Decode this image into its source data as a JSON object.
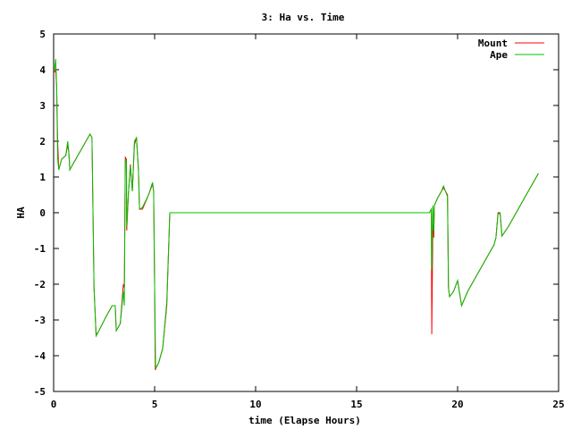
{
  "chart_data": {
    "type": "line",
    "title": "3: Ha vs. Time",
    "xlabel": "time (Elapse Hours)",
    "ylabel": "HA",
    "xlim": [
      0,
      25
    ],
    "ylim": [
      -5,
      5
    ],
    "x_ticks": [
      "0",
      "5",
      "10",
      "15",
      "20",
      "25"
    ],
    "y_ticks": [
      "-5",
      "-4",
      "-3",
      "-2",
      "-1",
      "0",
      "1",
      "2",
      "3",
      "4",
      "5"
    ],
    "grid": false,
    "legend_position": "top-right",
    "series": [
      {
        "name": "Mount",
        "color": "#ff0000",
        "points": [
          [
            0.0,
            3.9
          ],
          [
            0.1,
            4.0
          ],
          [
            0.15,
            3.5
          ],
          [
            0.2,
            2.0
          ],
          [
            0.25,
            1.2
          ],
          [
            0.3,
            1.3
          ],
          [
            0.4,
            1.5
          ],
          [
            0.6,
            1.6
          ],
          [
            0.7,
            1.9
          ],
          [
            0.75,
            1.7
          ],
          [
            0.8,
            1.2
          ],
          [
            0.9,
            1.3
          ],
          [
            1.2,
            1.6
          ],
          [
            1.5,
            1.9
          ],
          [
            1.8,
            2.2
          ],
          [
            1.9,
            2.1
          ],
          [
            2.0,
            -2.1
          ],
          [
            2.1,
            -3.4
          ],
          [
            2.2,
            -3.35
          ],
          [
            2.6,
            -2.9
          ],
          [
            2.9,
            -2.6
          ],
          [
            3.05,
            -2.6
          ],
          [
            3.1,
            -3.3
          ],
          [
            3.3,
            -3.1
          ],
          [
            3.45,
            -2.0
          ],
          [
            3.5,
            -2.1
          ],
          [
            3.55,
            1.55
          ],
          [
            3.6,
            1.5
          ],
          [
            3.62,
            -0.5
          ],
          [
            3.7,
            0.5
          ],
          [
            3.8,
            1.35
          ],
          [
            3.9,
            0.6
          ],
          [
            4.0,
            1.9
          ],
          [
            4.1,
            2.1
          ],
          [
            4.2,
            1.2
          ],
          [
            4.25,
            0.1
          ],
          [
            4.4,
            0.1
          ],
          [
            4.7,
            0.5
          ],
          [
            4.9,
            0.8
          ],
          [
            4.95,
            0.6
          ],
          [
            5.0,
            -2.0
          ],
          [
            5.03,
            -4.4
          ],
          [
            5.1,
            -4.3
          ],
          [
            5.2,
            -4.2
          ],
          [
            5.4,
            -3.8
          ],
          [
            5.6,
            -2.6
          ],
          [
            5.75,
            0.0
          ],
          [
            18.6,
            0.0
          ],
          [
            18.7,
            0.1
          ],
          [
            18.72,
            -3.4
          ],
          [
            18.78,
            0.0
          ],
          [
            18.82,
            -0.7
          ],
          [
            18.85,
            0.2
          ],
          [
            19.0,
            0.4
          ],
          [
            19.2,
            0.6
          ],
          [
            19.3,
            0.7
          ],
          [
            19.5,
            0.5
          ],
          [
            19.55,
            -2.1
          ],
          [
            19.6,
            -2.35
          ],
          [
            19.8,
            -2.2
          ],
          [
            20.0,
            -1.9
          ],
          [
            20.2,
            -2.6
          ],
          [
            20.5,
            -2.2
          ],
          [
            21.0,
            -1.7
          ],
          [
            21.5,
            -1.2
          ],
          [
            21.8,
            -0.9
          ],
          [
            21.9,
            -0.7
          ],
          [
            22.0,
            0.0
          ],
          [
            22.1,
            0.0
          ],
          [
            22.2,
            -0.65
          ],
          [
            22.5,
            -0.4
          ],
          [
            22.8,
            -0.1
          ],
          [
            23.0,
            0.1
          ],
          [
            23.4,
            0.5
          ],
          [
            23.8,
            0.9
          ],
          [
            24.0,
            1.1
          ]
        ]
      },
      {
        "name": "Ape",
        "color": "#00c000",
        "points": [
          [
            0.0,
            4.0
          ],
          [
            0.05,
            4.0
          ],
          [
            0.1,
            4.3
          ],
          [
            0.15,
            3.5
          ],
          [
            0.2,
            1.5
          ],
          [
            0.25,
            1.2
          ],
          [
            0.3,
            1.3
          ],
          [
            0.4,
            1.5
          ],
          [
            0.6,
            1.6
          ],
          [
            0.7,
            2.0
          ],
          [
            0.75,
            1.7
          ],
          [
            0.8,
            1.2
          ],
          [
            0.9,
            1.3
          ],
          [
            1.2,
            1.6
          ],
          [
            1.5,
            1.9
          ],
          [
            1.8,
            2.2
          ],
          [
            1.9,
            2.1
          ],
          [
            2.0,
            -2.1
          ],
          [
            2.1,
            -3.45
          ],
          [
            2.2,
            -3.35
          ],
          [
            2.6,
            -2.9
          ],
          [
            2.9,
            -2.6
          ],
          [
            3.05,
            -2.6
          ],
          [
            3.1,
            -3.3
          ],
          [
            3.3,
            -3.1
          ],
          [
            3.45,
            -2.2
          ],
          [
            3.5,
            -2.6
          ],
          [
            3.55,
            1.5
          ],
          [
            3.6,
            1.4
          ],
          [
            3.62,
            -0.4
          ],
          [
            3.7,
            0.5
          ],
          [
            3.8,
            1.3
          ],
          [
            3.9,
            0.6
          ],
          [
            4.0,
            2.0
          ],
          [
            4.1,
            2.1
          ],
          [
            4.2,
            1.2
          ],
          [
            4.25,
            0.1
          ],
          [
            4.4,
            0.15
          ],
          [
            4.7,
            0.5
          ],
          [
            4.9,
            0.85
          ],
          [
            4.95,
            0.6
          ],
          [
            5.0,
            -2.1
          ],
          [
            5.05,
            -4.35
          ],
          [
            5.1,
            -4.3
          ],
          [
            5.2,
            -4.2
          ],
          [
            5.4,
            -3.8
          ],
          [
            5.6,
            -2.5
          ],
          [
            5.75,
            0.0
          ],
          [
            18.6,
            0.0
          ],
          [
            18.7,
            0.1
          ],
          [
            18.72,
            -1.6
          ],
          [
            18.78,
            0.2
          ],
          [
            18.82,
            -0.5
          ],
          [
            18.85,
            0.2
          ],
          [
            19.0,
            0.4
          ],
          [
            19.2,
            0.6
          ],
          [
            19.3,
            0.75
          ],
          [
            19.5,
            0.45
          ],
          [
            19.55,
            -2.1
          ],
          [
            19.6,
            -2.35
          ],
          [
            19.8,
            -2.2
          ],
          [
            20.0,
            -1.9
          ],
          [
            20.2,
            -2.6
          ],
          [
            20.5,
            -2.2
          ],
          [
            21.0,
            -1.7
          ],
          [
            21.5,
            -1.2
          ],
          [
            21.8,
            -0.9
          ],
          [
            21.9,
            -0.7
          ],
          [
            22.0,
            -0.05
          ],
          [
            22.1,
            0.0
          ],
          [
            22.2,
            -0.65
          ],
          [
            22.5,
            -0.4
          ],
          [
            22.8,
            -0.1
          ],
          [
            23.0,
            0.1
          ],
          [
            23.4,
            0.5
          ],
          [
            23.8,
            0.9
          ],
          [
            24.0,
            1.1
          ]
        ]
      }
    ]
  }
}
